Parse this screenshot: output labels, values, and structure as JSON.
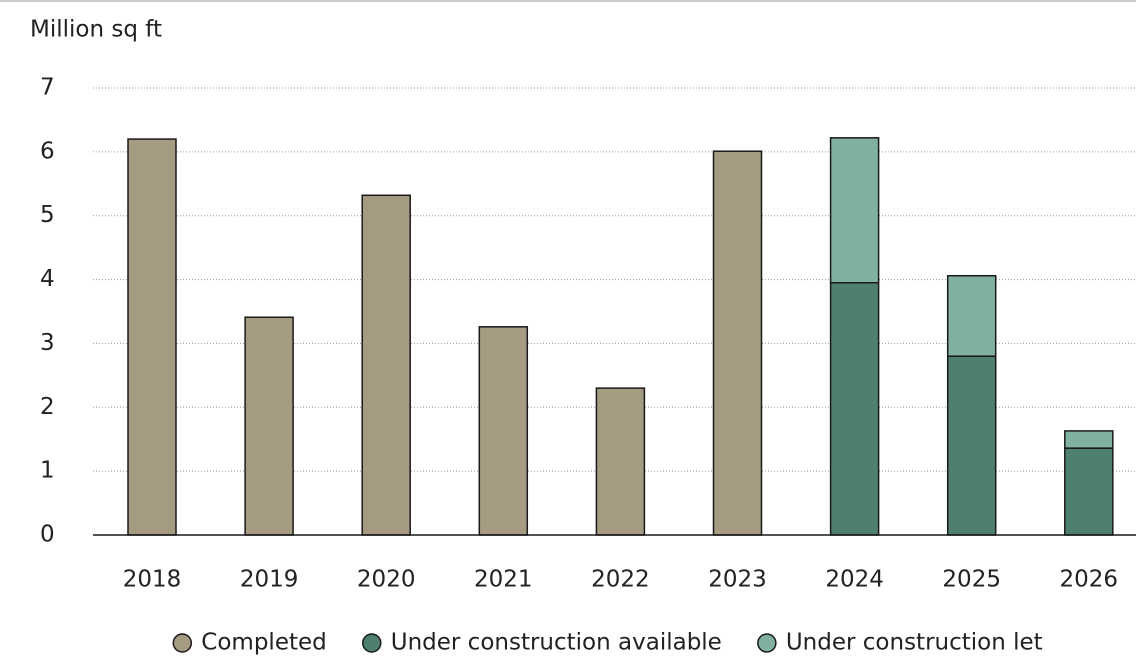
{
  "chart_data": {
    "type": "bar",
    "stacked": true,
    "y_label": "Million sq ft",
    "categories": [
      "2018",
      "2019",
      "2020",
      "2021",
      "2022",
      "2023",
      "2024",
      "2025",
      "2026"
    ],
    "series": [
      {
        "name": "Completed",
        "color": "#a59b83",
        "values": [
          6.2,
          3.41,
          5.32,
          3.26,
          2.3,
          6.01,
          null,
          null,
          null
        ]
      },
      {
        "name": "Under construction available",
        "color": "#4f7f6d",
        "values": [
          null,
          null,
          null,
          null,
          null,
          null,
          3.95,
          2.8,
          1.36
        ]
      },
      {
        "name": "Under construction let",
        "color": "#7fb0a0",
        "values": [
          null,
          null,
          null,
          null,
          null,
          null,
          2.27,
          1.26,
          0.27
        ]
      }
    ],
    "ylim": [
      0,
      7
    ],
    "yticks": [
      0,
      1,
      2,
      3,
      4,
      5,
      6,
      7
    ],
    "grid": true
  }
}
